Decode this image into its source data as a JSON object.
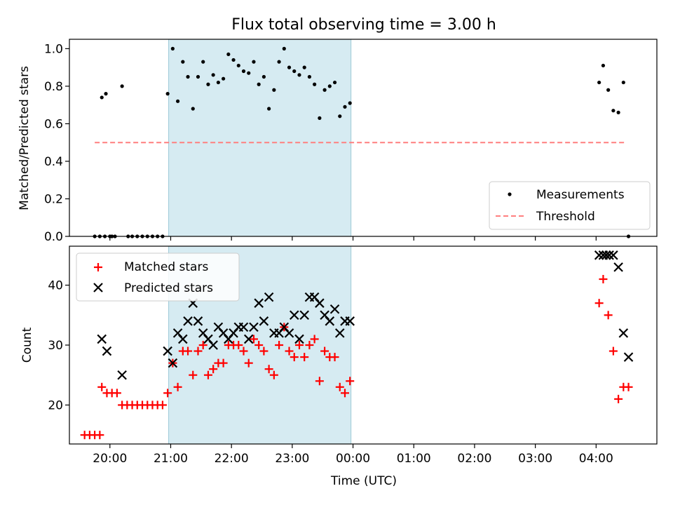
{
  "title": "Flux total observing time = 3.00 h",
  "xlabel": "Time (UTC)",
  "colors": {
    "measurement": "#000000",
    "threshold": "#ff7f7f",
    "matched": "#ff0000",
    "predicted": "#000000",
    "shade": "#add8e6"
  },
  "chart_data": [
    {
      "type": "scatter",
      "ylabel": "Matched/Predicted stars",
      "xlim": [
        "19:20",
        "05:00"
      ],
      "ylim": [
        0,
        1.05
      ],
      "yticks": [
        0.0,
        0.2,
        0.4,
        0.6,
        0.8,
        1.0
      ],
      "ytick_labels": [
        "0.0",
        "0.2",
        "0.4",
        "0.6",
        "0.8",
        "1.0"
      ],
      "xtick_labels": [
        "20:00",
        "21:00",
        "22:00",
        "23:00",
        "00:00",
        "01:00",
        "02:00",
        "03:00",
        "04:00"
      ],
      "grid": false,
      "legend_position": "lower-right",
      "legend": [
        "Measurements",
        "Threshold"
      ],
      "shaded_interval": [
        "20:58",
        "23:58"
      ],
      "threshold": {
        "value": 0.5,
        "from": "19:45",
        "to": "04:30"
      },
      "series": [
        {
          "name": "Measurements",
          "marker": "dot",
          "x": [
            "19:45",
            "19:50",
            "19:55",
            "20:00",
            "19:52",
            "19:56",
            "20:02",
            "20:05",
            "20:12",
            "20:18",
            "20:22",
            "20:27",
            "20:32",
            "20:37",
            "20:42",
            "20:47",
            "20:52",
            "20:57",
            "21:02",
            "21:07",
            "21:12",
            "21:17",
            "21:22",
            "21:27",
            "21:32",
            "21:37",
            "21:42",
            "21:47",
            "21:52",
            "21:57",
            "22:02",
            "22:07",
            "22:12",
            "22:17",
            "22:22",
            "22:27",
            "22:32",
            "22:37",
            "22:42",
            "22:47",
            "22:52",
            "22:57",
            "23:02",
            "23:07",
            "23:12",
            "23:17",
            "23:22",
            "23:27",
            "23:32",
            "23:37",
            "23:42",
            "23:47",
            "23:52",
            "23:57",
            "04:03",
            "04:07",
            "04:12",
            "04:17",
            "04:22",
            "04:27",
            "04:32"
          ],
          "y": [
            0.0,
            0.0,
            0.0,
            0.0,
            0.74,
            0.76,
            0.0,
            0.0,
            0.8,
            0.0,
            0.0,
            0.0,
            0.0,
            0.0,
            0.0,
            0.0,
            0.0,
            0.76,
            1.0,
            0.72,
            0.93,
            0.85,
            0.68,
            0.85,
            0.93,
            0.81,
            0.86,
            0.82,
            0.84,
            0.97,
            0.94,
            0.91,
            0.88,
            0.87,
            0.93,
            0.81,
            0.85,
            0.68,
            0.78,
            0.93,
            1.0,
            0.9,
            0.88,
            0.86,
            0.9,
            0.85,
            0.81,
            0.63,
            0.78,
            0.8,
            0.82,
            0.64,
            0.69,
            0.71,
            0.82,
            0.91,
            0.78,
            0.67,
            0.66,
            0.82,
            0.0
          ]
        }
      ]
    },
    {
      "type": "scatter",
      "ylabel": "Count",
      "xlim": [
        "19:20",
        "05:00"
      ],
      "ylim": [
        13.5,
        46.5
      ],
      "yticks": [
        20,
        30,
        40
      ],
      "ytick_labels": [
        "20",
        "30",
        "40"
      ],
      "xtick_labels": [
        "20:00",
        "21:00",
        "22:00",
        "23:00",
        "00:00",
        "01:00",
        "02:00",
        "03:00",
        "04:00"
      ],
      "grid": false,
      "legend_position": "upper-left",
      "legend": [
        "Matched stars",
        "Predicted stars"
      ],
      "shaded_interval": [
        "20:58",
        "23:58"
      ],
      "series": [
        {
          "name": "Matched stars",
          "marker": "plus",
          "x": [
            "19:35",
            "19:40",
            "19:45",
            "19:50",
            "19:52",
            "19:57",
            "20:02",
            "20:07",
            "20:12",
            "20:17",
            "20:22",
            "20:27",
            "20:32",
            "20:37",
            "20:42",
            "20:47",
            "20:52",
            "20:57",
            "21:02",
            "21:07",
            "21:12",
            "21:17",
            "21:22",
            "21:27",
            "21:32",
            "21:37",
            "21:42",
            "21:47",
            "21:52",
            "21:57",
            "22:02",
            "22:07",
            "22:12",
            "22:17",
            "22:22",
            "22:27",
            "22:32",
            "22:37",
            "22:42",
            "22:47",
            "22:52",
            "22:57",
            "23:02",
            "23:07",
            "23:12",
            "23:17",
            "23:22",
            "23:27",
            "23:32",
            "23:37",
            "23:42",
            "23:47",
            "23:52",
            "23:57",
            "04:03",
            "04:07",
            "04:12",
            "04:17",
            "04:22",
            "04:27",
            "04:32"
          ],
          "y": [
            15,
            15,
            15,
            15,
            23,
            22,
            22,
            22,
            20,
            20,
            20,
            20,
            20,
            20,
            20,
            20,
            20,
            22,
            27,
            23,
            29,
            29,
            25,
            29,
            30,
            25,
            26,
            27,
            27,
            30,
            30,
            30,
            29,
            27,
            31,
            30,
            29,
            26,
            25,
            30,
            33,
            29,
            28,
            30,
            28,
            30,
            31,
            24,
            29,
            28,
            28,
            23,
            22,
            24,
            37,
            41,
            35,
            29,
            21,
            23,
            23
          ]
        },
        {
          "name": "Predicted stars",
          "marker": "x",
          "x": [
            "19:52",
            "19:57",
            "20:12",
            "20:57",
            "21:02",
            "21:07",
            "21:12",
            "21:17",
            "21:22",
            "21:27",
            "21:32",
            "21:37",
            "21:42",
            "21:47",
            "21:52",
            "21:57",
            "22:02",
            "22:07",
            "22:12",
            "22:17",
            "22:22",
            "22:27",
            "22:32",
            "22:37",
            "22:42",
            "22:47",
            "22:52",
            "22:57",
            "23:02",
            "23:07",
            "23:12",
            "23:17",
            "23:22",
            "23:27",
            "23:32",
            "23:37",
            "23:42",
            "23:47",
            "23:52",
            "23:57",
            "04:03",
            "04:07",
            "04:10",
            "04:13",
            "04:17",
            "04:22",
            "04:27",
            "04:32"
          ],
          "y": [
            31,
            29,
            25,
            29,
            27,
            32,
            31,
            34,
            37,
            34,
            32,
            31,
            30,
            33,
            32,
            31,
            32,
            33,
            33,
            31,
            33,
            37,
            34,
            38,
            32,
            32,
            33,
            32,
            35,
            31,
            35,
            38,
            38,
            37,
            35,
            34,
            36,
            32,
            34,
            34,
            45,
            45,
            45,
            45,
            45,
            43,
            32,
            28
          ]
        }
      ]
    }
  ]
}
